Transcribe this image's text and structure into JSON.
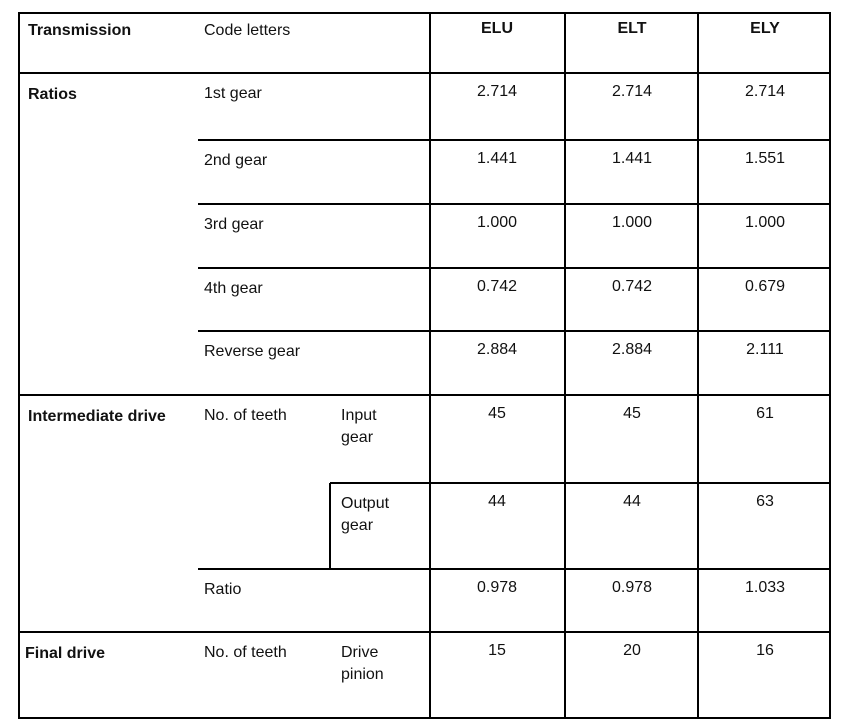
{
  "header": {
    "label": "Transmission",
    "sublabel": "Code letters",
    "codes": [
      "ELU",
      "ELT",
      "ELY"
    ]
  },
  "sections": [
    {
      "label": "Ratios",
      "rows": [
        {
          "label": "1st gear",
          "values": [
            "2.714",
            "2.714",
            "2.714"
          ]
        },
        {
          "label": "2nd gear",
          "values": [
            "1.441",
            "1.441",
            "1.551"
          ]
        },
        {
          "label": "3rd gear",
          "values": [
            "1.000",
            "1.000",
            "1.000"
          ]
        },
        {
          "label": "4th gear",
          "values": [
            "0.742",
            "0.742",
            "0.679"
          ]
        },
        {
          "label": "Reverse gear",
          "values": [
            "2.884",
            "2.884",
            "2.111"
          ]
        }
      ]
    },
    {
      "label": "Intermediate drive",
      "rows": [
        {
          "label": "No. of teeth",
          "sublabel": "Input gear",
          "values": [
            "45",
            "45",
            "61"
          ]
        },
        {
          "sublabel": "Output gear",
          "values": [
            "44",
            "44",
            "63"
          ]
        },
        {
          "label": "Ratio",
          "values": [
            "0.978",
            "0.978",
            "1.033"
          ]
        }
      ]
    },
    {
      "label": "Final drive",
      "rows": [
        {
          "label": "No. of teeth",
          "sublabel": "Drive pinion",
          "values": [
            "15",
            "20",
            "16"
          ]
        }
      ]
    }
  ]
}
